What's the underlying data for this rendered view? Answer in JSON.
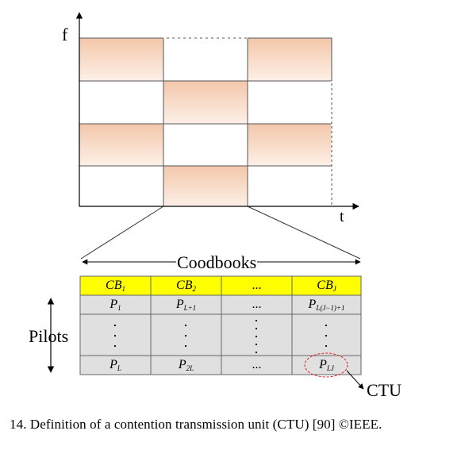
{
  "diagram": {
    "axis_f": "f",
    "axis_t": "t",
    "codebooks_label": "Coodbooks",
    "pilots_label": "Pilots",
    "ctu_label": "CTU"
  },
  "table": {
    "header": [
      {
        "base": "CB",
        "sub": "1"
      },
      {
        "base": "CB",
        "sub": "2"
      },
      {
        "base": "...",
        "sub": ""
      },
      {
        "base": "CB",
        "sub": "J"
      }
    ],
    "first_row": [
      {
        "base": "P",
        "sub": "1"
      },
      {
        "base": "P",
        "sub": "L+1"
      },
      {
        "base": "...",
        "sub": ""
      },
      {
        "base": "P",
        "sub": "L(J−1)+1"
      }
    ],
    "last_row": [
      {
        "base": "P",
        "sub": "L"
      },
      {
        "base": "P",
        "sub": "2L"
      },
      {
        "base": "...",
        "sub": ""
      },
      {
        "base": "P",
        "sub": "LJ"
      }
    ]
  },
  "caption": "14.   Definition of a contention transmission unit (CTU) [90] ©IEEE.",
  "colors": {
    "peach_top": "#f3c7aa",
    "peach_bottom": "#fdf0e7",
    "header_yellow": "#ffff00",
    "gray_row": "#e0e0e0",
    "ellipse_red": "#e02020"
  }
}
